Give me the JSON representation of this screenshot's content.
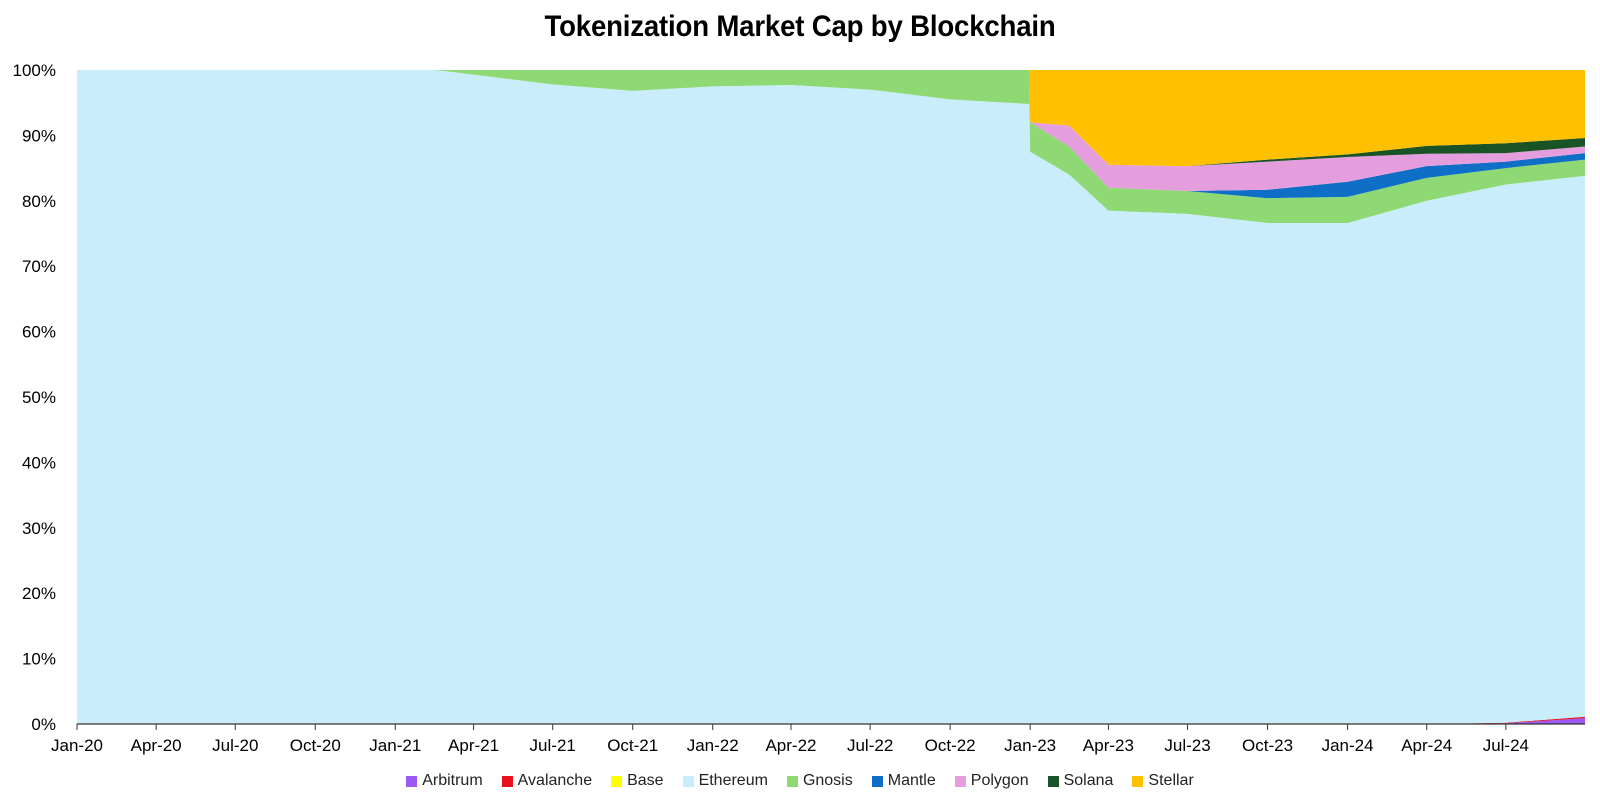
{
  "chart_data": {
    "type": "area",
    "stacking": "percent",
    "title": "Tokenization Market Cap by Blockchain",
    "xlabel": "",
    "ylabel": "",
    "ylim": [
      0,
      100
    ],
    "yticks": [
      "0%",
      "10%",
      "20%",
      "30%",
      "40%",
      "50%",
      "60%",
      "70%",
      "80%",
      "90%",
      "100%"
    ],
    "xticks": [
      "Jan-20",
      "Apr-20",
      "Jul-20",
      "Oct-20",
      "Jan-21",
      "Apr-21",
      "Jul-21",
      "Oct-21",
      "Jan-22",
      "Apr-22",
      "Jul-22",
      "Oct-22",
      "Jan-23",
      "Apr-23",
      "Jul-23",
      "Oct-23",
      "Jan-24",
      "Apr-24",
      "Jul-24"
    ],
    "x": [
      "2020-01-01",
      "2020-04-01",
      "2020-07-01",
      "2020-10-01",
      "2021-01-01",
      "2021-02-15",
      "2021-03-01",
      "2021-04-01",
      "2021-07-01",
      "2021-10-01",
      "2022-01-01",
      "2022-04-01",
      "2022-07-01",
      "2022-10-01",
      "2022-12-31",
      "2023-01-01",
      "2023-02-15",
      "2023-04-01",
      "2023-07-01",
      "2023-10-01",
      "2024-01-01",
      "2024-04-01",
      "2024-07-01",
      "2024-09-30"
    ],
    "series": [
      {
        "name": "Arbitrum",
        "color": "#9B59F5",
        "values": [
          0,
          0,
          0,
          0,
          0,
          0,
          0,
          0,
          0,
          0,
          0,
          0,
          0,
          0,
          0,
          0,
          0,
          0,
          0,
          0,
          0,
          0,
          0.1,
          0.9
        ]
      },
      {
        "name": "Avalanche",
        "color": "#E8101C",
        "values": [
          0,
          0,
          0,
          0,
          0,
          0,
          0,
          0,
          0,
          0,
          0,
          0,
          0,
          0,
          0,
          0,
          0,
          0,
          0,
          0,
          0,
          0,
          0.1,
          0.2
        ]
      },
      {
        "name": "Base",
        "color": "#FFFF00",
        "values": [
          0,
          0,
          0,
          0,
          0,
          0,
          0,
          0,
          0,
          0,
          0,
          0,
          0,
          0,
          0,
          0,
          0,
          0,
          0,
          0.1,
          0.1,
          0,
          0,
          0
        ]
      },
      {
        "name": "Ethereum",
        "color": "#CAEDFB",
        "values": [
          100,
          100,
          100,
          100,
          100,
          100,
          99.8,
          99.3,
          97.8,
          96.8,
          97.5,
          97.7,
          97,
          95.5,
          94.8,
          87.5,
          84,
          78.5,
          78,
          76.5,
          76.5,
          80,
          82.3,
          82.7
        ]
      },
      {
        "name": "Gnosis",
        "color": "#8ED973",
        "values": [
          0,
          0,
          0,
          0,
          0,
          0,
          0.2,
          0.7,
          2.2,
          3.2,
          2.5,
          2.3,
          3,
          4.5,
          5.2,
          4.5,
          4.3,
          3.5,
          3.5,
          3.8,
          4,
          3.5,
          2.5,
          2.5
        ]
      },
      {
        "name": "Mantle",
        "color": "#0F6FC6",
        "values": [
          0,
          0,
          0,
          0,
          0,
          0,
          0,
          0,
          0,
          0,
          0,
          0,
          0,
          0,
          0,
          0,
          0,
          0,
          0,
          1.3,
          2.3,
          1.8,
          1,
          1
        ]
      },
      {
        "name": "Polygon",
        "color": "#E59EDD",
        "values": [
          0,
          0,
          0,
          0,
          0,
          0,
          0,
          0,
          0,
          0,
          0,
          0,
          0,
          0,
          0,
          0,
          3.2,
          3.5,
          3.8,
          4.3,
          3.8,
          1.9,
          1.3,
          1
        ]
      },
      {
        "name": "Solana",
        "color": "#1A5326",
        "values": [
          0,
          0,
          0,
          0,
          0,
          0,
          0,
          0,
          0,
          0,
          0,
          0,
          0,
          0,
          0,
          0,
          0,
          0,
          0,
          0.3,
          0.4,
          1.2,
          1.5,
          1.3
        ]
      },
      {
        "name": "Stellar",
        "color": "#FFC000",
        "values": [
          0,
          0,
          0,
          0,
          0,
          0,
          0,
          0,
          0,
          0,
          0,
          0,
          0,
          0,
          0,
          8,
          8.5,
          14.5,
          14.7,
          13.7,
          12.9,
          11.6,
          11.2,
          10.4
        ]
      }
    ],
    "legend": "bottom",
    "grid": false
  }
}
